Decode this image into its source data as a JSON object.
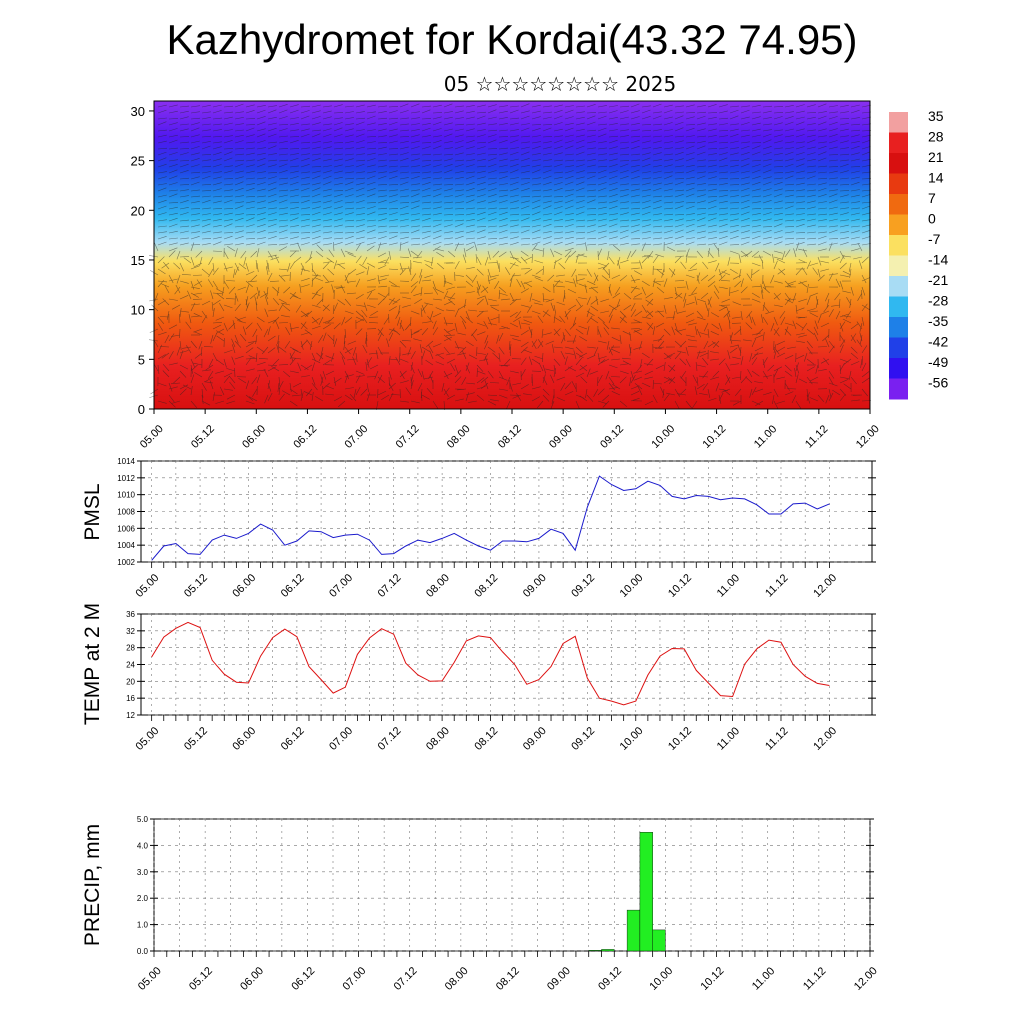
{
  "title": "Kazhydromet for Kordai(43.32 74.95)",
  "subtitle": "05 ☆☆☆☆☆☆☆☆ 2025",
  "chart_data": [
    {
      "type": "heatmap",
      "name": "vertical-profile",
      "x_ticks": [
        "05.00",
        "05.12",
        "06.00",
        "06.12",
        "07.00",
        "07.12",
        "08.00",
        "08.12",
        "09.00",
        "09.12",
        "10.00",
        "10.12",
        "11.00",
        "11.12",
        "12.00"
      ],
      "y_ticks": [
        0,
        5,
        10,
        15,
        20,
        25,
        30
      ],
      "ylim": [
        0,
        31
      ],
      "colorbar_labels": [
        "35",
        "28",
        "21",
        "14",
        "7",
        "0",
        "-7",
        "-14",
        "-21",
        "-28",
        "-35",
        "-42",
        "-49",
        "-56"
      ],
      "colorbar_colors": [
        "#f2a0a0",
        "#e82020",
        "#d81010",
        "#e83a10",
        "#f06a10",
        "#f8a020",
        "#fbe060",
        "#f4f0b0",
        "#a8dcf4",
        "#30b8f0",
        "#1e80e8",
        "#2040e8",
        "#3010f0",
        "#7a20f0"
      ]
    },
    {
      "type": "line",
      "name": "pmsl",
      "ylabel": "PMSL",
      "color": "#1a1acc",
      "ylim": [
        1002,
        1014
      ],
      "y_ticks": [
        1002,
        1004,
        1006,
        1008,
        1010,
        1012,
        1014
      ],
      "x_ticks": [
        "05.00",
        "05.12",
        "06.00",
        "06.12",
        "07.00",
        "07.12",
        "08.00",
        "08.12",
        "09.00",
        "09.12",
        "10.00",
        "10.12",
        "11.00",
        "11.12",
        "12.00"
      ],
      "values": [
        1002.2,
        1003.9,
        1004.2,
        1003.0,
        1002.9,
        1004.6,
        1005.2,
        1004.8,
        1005.4,
        1006.5,
        1005.8,
        1004.0,
        1004.5,
        1005.7,
        1005.6,
        1004.9,
        1005.2,
        1005.3,
        1004.6,
        1002.9,
        1003.0,
        1003.9,
        1004.6,
        1004.3,
        1004.8,
        1005.4,
        1004.6,
        1003.9,
        1003.4,
        1004.5,
        1004.5,
        1004.4,
        1004.8,
        1005.9,
        1005.4,
        1003.4,
        1008.5,
        1012.2,
        1011.2,
        1010.5,
        1010.7,
        1011.6,
        1011.1,
        1009.8,
        1009.5,
        1009.9,
        1009.8,
        1009.4,
        1009.6,
        1009.5,
        1008.8,
        1007.7,
        1007.7,
        1008.9,
        1009.0,
        1008.3,
        1008.9
      ]
    },
    {
      "type": "line",
      "name": "temp-2m",
      "ylabel": "TEMP at 2 M",
      "color": "#dd1111",
      "ylim": [
        12,
        36
      ],
      "y_ticks": [
        12,
        16,
        20,
        24,
        28,
        32,
        36
      ],
      "x_ticks": [
        "05.00",
        "05.12",
        "06.00",
        "06.12",
        "07.00",
        "07.12",
        "08.00",
        "08.12",
        "09.00",
        "09.12",
        "10.00",
        "10.12",
        "11.00",
        "11.12",
        "12.00"
      ],
      "values": [
        25.8,
        30.5,
        32.6,
        34.0,
        32.8,
        25.0,
        21.7,
        19.8,
        19.6,
        26.0,
        30.4,
        32.4,
        30.6,
        23.5,
        20.4,
        17.2,
        18.6,
        26.4,
        30.3,
        32.5,
        31.2,
        24.3,
        21.5,
        20.0,
        20.1,
        24.5,
        29.6,
        30.8,
        30.4,
        27.0,
        24.0,
        19.3,
        20.4,
        23.5,
        29.0,
        30.7,
        20.8,
        16.0,
        15.3,
        14.4,
        15.3,
        21.5,
        26.0,
        27.8,
        27.7,
        22.6,
        19.6,
        16.6,
        16.4,
        24.1,
        27.7,
        29.8,
        29.3,
        24.0,
        21.2,
        19.5,
        19.0
      ]
    },
    {
      "type": "bar",
      "name": "precip",
      "ylabel": "PRECIP, mm",
      "color": "#22ee22",
      "ylim": [
        0,
        5
      ],
      "y_ticks": [
        "0.0",
        "1.0",
        "2.0",
        "3.0",
        "4.0",
        "5.0"
      ],
      "x_ticks": [
        "05.00",
        "05.12",
        "06.00",
        "06.12",
        "07.00",
        "07.12",
        "08.00",
        "08.12",
        "09.00",
        "09.12",
        "10.00",
        "10.12",
        "11.00",
        "11.12",
        "12.00"
      ],
      "values": [
        0,
        0,
        0,
        0,
        0,
        0,
        0,
        0,
        0,
        0,
        0,
        0,
        0,
        0,
        0,
        0,
        0,
        0,
        0,
        0,
        0,
        0,
        0,
        0,
        0,
        0,
        0,
        0,
        0,
        0,
        0,
        0,
        0,
        0,
        0.03,
        0.06,
        0,
        1.55,
        4.5,
        0.8,
        0,
        0,
        0,
        0,
        0,
        0,
        0,
        0,
        0,
        0,
        0,
        0,
        0,
        0,
        0,
        0
      ]
    }
  ]
}
